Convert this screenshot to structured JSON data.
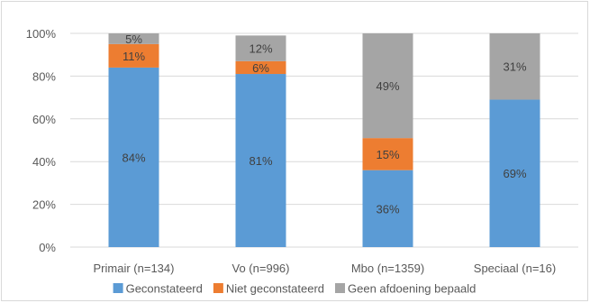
{
  "chart_data": {
    "type": "bar",
    "stacked": true,
    "categories": [
      "Primair (n=134)",
      "Vo (n=996)",
      "Mbo (n=1359)",
      "Speciaal (n=16)"
    ],
    "series": [
      {
        "name": "Geconstateerd",
        "color": "#5b9bd5",
        "values": [
          84,
          81,
          36,
          69
        ],
        "labels": [
          "84%",
          "81%",
          "36%",
          "69%"
        ]
      },
      {
        "name": "Niet geconstateerd",
        "color": "#ed7d31",
        "values": [
          11,
          6,
          15,
          0
        ],
        "labels": [
          "11%",
          "6%",
          "15%",
          ""
        ]
      },
      {
        "name": "Geen afdoening bepaald",
        "color": "#a5a5a5",
        "values": [
          5,
          12,
          49,
          31
        ],
        "labels": [
          "5%",
          "12%",
          "49%",
          "31%"
        ]
      }
    ],
    "y_ticks": [
      "0%",
      "20%",
      "40%",
      "60%",
      "80%",
      "100%"
    ],
    "ylim": [
      0,
      100
    ],
    "grid": true,
    "legend_position": "bottom"
  }
}
